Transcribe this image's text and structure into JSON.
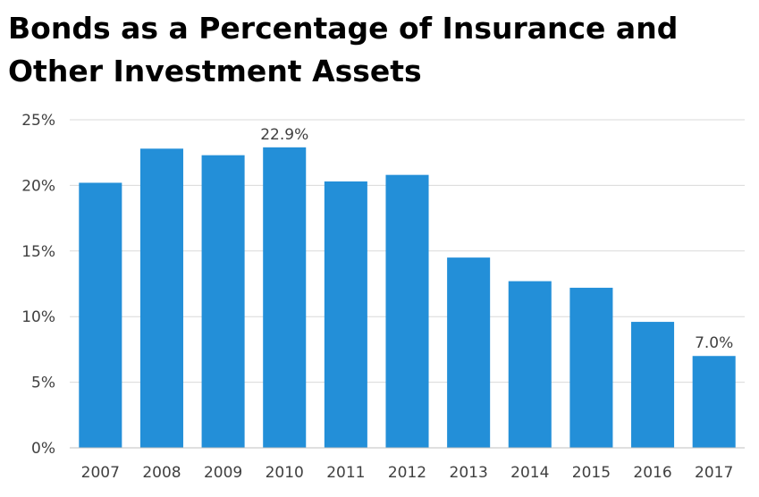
{
  "chart_data": {
    "type": "bar",
    "title_line1": "Bonds as a Percentage of Insurance and",
    "title_line2": "Other Investment Assets",
    "categories": [
      "2007",
      "2008",
      "2009",
      "2010",
      "2011",
      "2012",
      "2013",
      "2014",
      "2015",
      "2016",
      "2017"
    ],
    "values": [
      20.2,
      22.8,
      22.3,
      22.9,
      20.3,
      20.8,
      14.5,
      12.7,
      12.2,
      9.6,
      7.0
    ],
    "data_labels": [
      {
        "category": "2010",
        "text": "22.9%"
      },
      {
        "category": "2017",
        "text": "7.0%"
      }
    ],
    "y_ticks": [
      "0%",
      "5%",
      "10%",
      "15%",
      "20%",
      "25%"
    ],
    "ylim": [
      0,
      25
    ],
    "grid": true,
    "legend": "none",
    "bar_color": "#238fd8"
  }
}
